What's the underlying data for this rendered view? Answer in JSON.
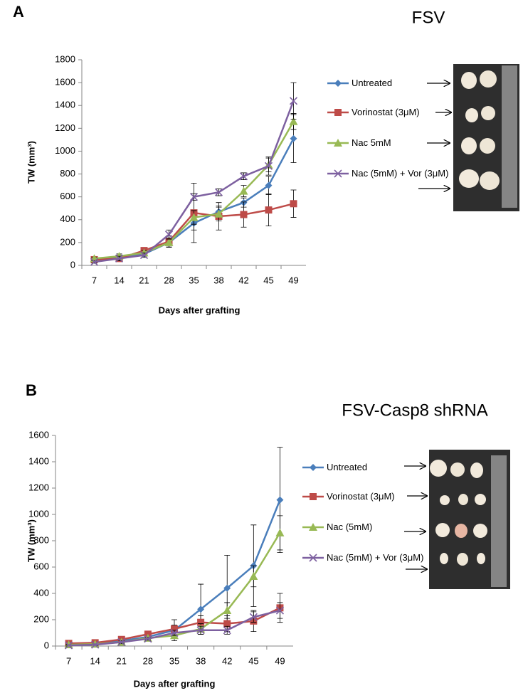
{
  "chart_data": [
    {
      "type": "line",
      "panel_label": "A",
      "title": "FSV",
      "x_label": "Days after grafting",
      "y_label": "TW (mm³)",
      "categories": [
        "7",
        "14",
        "21",
        "28",
        "35",
        "38",
        "42",
        "45",
        "49"
      ],
      "ylim": [
        0,
        1800
      ],
      "yticks": [
        0,
        200,
        400,
        600,
        800,
        1000,
        1200,
        1400,
        1600,
        1800
      ],
      "series": [
        {
          "name": "Untreated",
          "color": "#4a7ebb",
          "marker": "diamond",
          "values": [
            45,
            70,
            100,
            200,
            370,
            470,
            550,
            700,
            1110
          ],
          "errors": [
            10,
            20,
            20,
            40,
            60,
            50,
            40,
            80,
            210
          ]
        },
        {
          "name": "Vorinostat (3μM)",
          "color": "#be4b48",
          "marker": "square",
          "values": [
            50,
            60,
            130,
            210,
            460,
            430,
            445,
            485,
            540
          ],
          "errors": [
            10,
            15,
            20,
            50,
            260,
            120,
            110,
            140,
            120
          ]
        },
        {
          "name": "Nac 5mM",
          "color": "#98b954",
          "marker": "triangle",
          "values": [
            60,
            80,
            110,
            200,
            420,
            450,
            650,
            880,
            1260
          ],
          "errors": [
            10,
            20,
            20,
            40,
            60,
            60,
            50,
            60,
            70
          ]
        },
        {
          "name": "Nac (5mM) + Vor (3μM)",
          "color": "#7d60a0",
          "marker": "x",
          "values": [
            30,
            60,
            90,
            270,
            600,
            640,
            780,
            870,
            1440
          ],
          "errors": [
            10,
            20,
            20,
            40,
            30,
            30,
            30,
            80,
            160
          ]
        }
      ]
    },
    {
      "type": "line",
      "panel_label": "B",
      "title": "FSV-Casp8 shRNA",
      "x_label": "Days after grafting",
      "y_label": "TW (mm³)",
      "categories": [
        "7",
        "14",
        "21",
        "28",
        "35",
        "38",
        "42",
        "45",
        "49"
      ],
      "ylim": [
        0,
        1600
      ],
      "yticks": [
        0,
        200,
        400,
        600,
        800,
        1000,
        1200,
        1400,
        1600
      ],
      "series": [
        {
          "name": "Untreated",
          "color": "#4a7ebb",
          "marker": "diamond",
          "values": [
            10,
            20,
            40,
            70,
            120,
            280,
            440,
            610,
            1110
          ],
          "errors": [
            5,
            10,
            10,
            20,
            80,
            190,
            250,
            310,
            400
          ]
        },
        {
          "name": "Vorinostat (3μM)",
          "color": "#be4b48",
          "marker": "square",
          "values": [
            20,
            25,
            50,
            90,
            130,
            180,
            170,
            190,
            290
          ],
          "errors": [
            5,
            10,
            10,
            20,
            30,
            50,
            60,
            80,
            110
          ]
        },
        {
          "name": "Nac (5mM)",
          "color": "#98b954",
          "marker": "triangle",
          "values": [
            10,
            15,
            30,
            60,
            80,
            130,
            270,
            530,
            860
          ],
          "errors": [
            5,
            5,
            10,
            10,
            20,
            40,
            60,
            80,
            130
          ]
        },
        {
          "name": "Nac (5mM) + Vor (3μM)",
          "color": "#7d60a0",
          "marker": "x",
          "values": [
            5,
            10,
            30,
            55,
            100,
            120,
            120,
            220,
            270
          ],
          "errors": [
            5,
            5,
            10,
            10,
            20,
            30,
            30,
            40,
            60
          ]
        }
      ]
    }
  ]
}
